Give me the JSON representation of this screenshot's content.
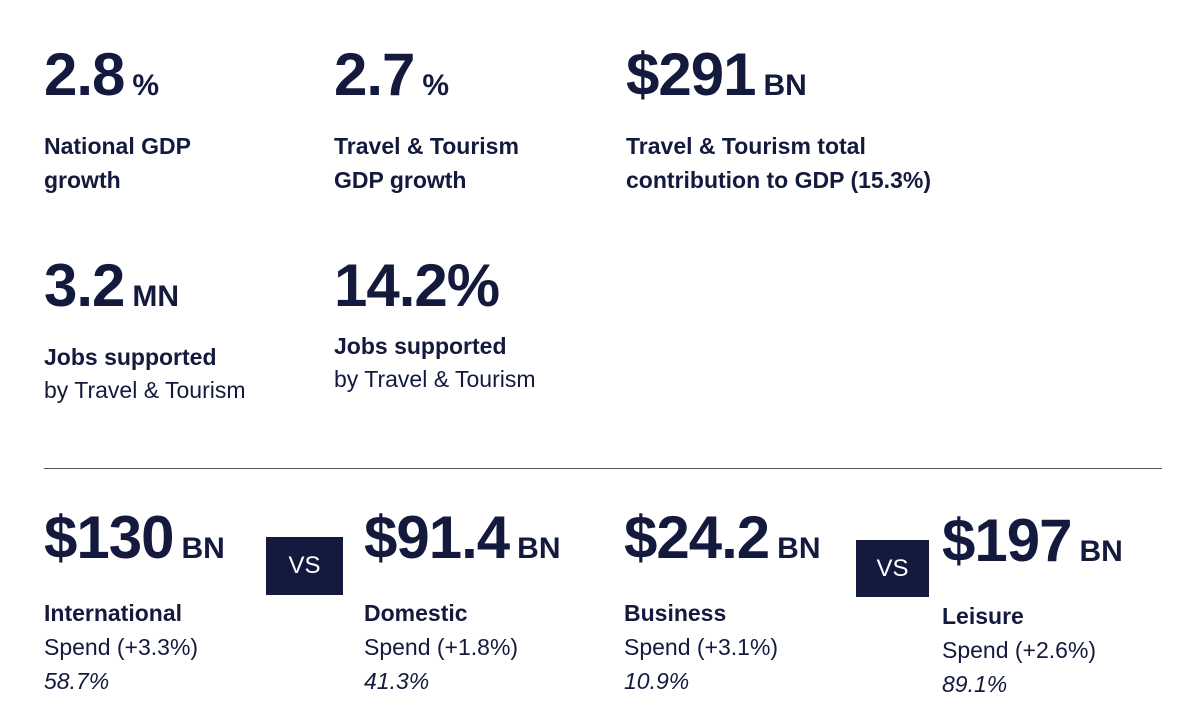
{
  "top_stats": [
    {
      "value": "2.8",
      "unit": "%",
      "label_bold": [
        "National GDP",
        "growth"
      ],
      "label_regular": []
    },
    {
      "value": "2.7",
      "unit": "%",
      "label_bold": [
        "Travel & Tourism",
        "GDP growth"
      ],
      "label_regular": []
    },
    {
      "value": "$291",
      "unit": "BN",
      "label_bold": [
        "Travel & Tourism total",
        "contribution to GDP (15.3%)"
      ],
      "label_regular": []
    },
    {
      "value": "3.2",
      "unit": "MN",
      "label_bold": [
        "Jobs supported"
      ],
      "label_regular": [
        "by Travel & Tourism"
      ]
    },
    {
      "value": "14.2%",
      "unit": "",
      "label_bold": [
        "Jobs supported"
      ],
      "label_regular": [
        "by Travel & Tourism"
      ]
    }
  ],
  "spend_stats": [
    {
      "value": "$130",
      "unit": "BN",
      "name": "International",
      "spend": "Spend (+3.3%)",
      "share": "58.7%"
    },
    {
      "value": "$91.4",
      "unit": "BN",
      "name": "Domestic",
      "spend": "Spend (+1.8%)",
      "share": "41.3%"
    },
    {
      "value": "$24.2",
      "unit": "BN",
      "name": "Business",
      "spend": "Spend (+3.1%)",
      "share": "10.9%"
    },
    {
      "value": "$197",
      "unit": "BN",
      "name": "Leisure",
      "spend": "Spend (+2.6%)",
      "share": "89.1%"
    }
  ],
  "vs_labels": [
    "VS",
    "VS"
  ]
}
